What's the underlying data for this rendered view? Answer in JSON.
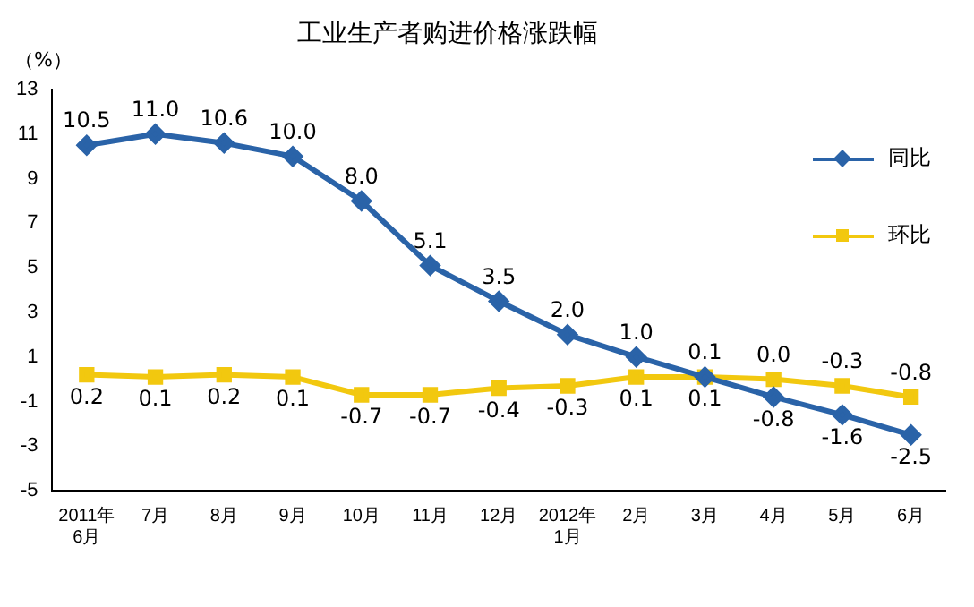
{
  "chart_data": {
    "type": "line",
    "title": "工业生产者购进价格涨跌幅",
    "ylabel": "（%）",
    "categories": [
      "2011年\n6月",
      "7月",
      "8月",
      "9月",
      "10月",
      "11月",
      "12月",
      "2012年\n1月",
      "2月",
      "3月",
      "4月",
      "5月",
      "6月"
    ],
    "series": [
      {
        "name": "同比",
        "color": "#2a63a8",
        "marker": "diamond",
        "values": [
          10.5,
          11.0,
          10.6,
          10.0,
          8.0,
          5.1,
          3.5,
          2.0,
          1.0,
          0.1,
          -0.8,
          -1.6,
          -2.5
        ],
        "value_labels": [
          "10.5",
          "11.0",
          "10.6",
          "10.0",
          "8.0",
          "5.1",
          "3.5",
          "2.0",
          "1.0",
          "0.1",
          "-0.8",
          "-1.6",
          "-2.5"
        ]
      },
      {
        "name": "环比",
        "color": "#f2c80f",
        "marker": "square",
        "values": [
          0.2,
          0.1,
          0.2,
          0.1,
          -0.7,
          -0.7,
          -0.4,
          -0.3,
          0.1,
          0.1,
          0.0,
          -0.3,
          -0.8
        ],
        "value_labels": [
          "0.2",
          "0.1",
          "0.2",
          "0.1",
          "-0.7",
          "-0.7",
          "-0.4",
          "-0.3",
          "0.1",
          "0.1",
          "0.0",
          "-0.3",
          "-0.8"
        ]
      }
    ],
    "ylim": [
      -5,
      13
    ],
    "yticks": [
      -5,
      -3,
      -1,
      1,
      3,
      5,
      7,
      9,
      11,
      13
    ],
    "grid": false,
    "legend": "top right",
    "line_style": "solid"
  }
}
